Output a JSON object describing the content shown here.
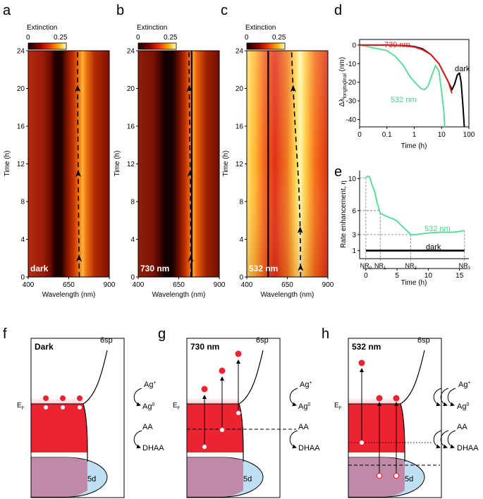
{
  "panel_labels": [
    "a",
    "b",
    "c",
    "d",
    "e",
    "f",
    "g",
    "h"
  ],
  "maps": [
    {
      "id": "a",
      "condition": "dark",
      "colorbar": {
        "title": "Extinction",
        "min_label": "0",
        "max_label": "0.25"
      },
      "x_label": "Wavelength (nm)",
      "y_label": "Time (h)",
      "x_ticks": [
        400,
        650,
        900
      ],
      "y_ticks": [
        0,
        4,
        8,
        12,
        16,
        20,
        24
      ],
      "x_range": [
        400,
        900
      ],
      "y_range": [
        0,
        24
      ],
      "dark_band_nm": 555,
      "peak_path": [
        [
          715,
          0
        ],
        [
          712,
          4
        ],
        [
          710,
          8
        ],
        [
          708,
          12
        ],
        [
          706,
          16
        ],
        [
          705,
          20
        ],
        [
          704,
          24
        ]
      ],
      "solid_line_nm": null,
      "arrow_times": [
        2,
        11,
        20
      ]
    },
    {
      "id": "b",
      "condition": "730 nm",
      "colorbar": {
        "title": "Extinction",
        "min_label": "0",
        "max_label": "0.25"
      },
      "x_label": "Wavelength (nm)",
      "y_label": "Time (h)",
      "x_ticks": [
        400,
        650,
        900
      ],
      "y_ticks": [
        0,
        4,
        8,
        12,
        16,
        20,
        24
      ],
      "x_range": [
        400,
        900
      ],
      "y_range": [
        0,
        24
      ],
      "dark_band_nm": 555,
      "peak_path": [
        [
          725,
          0
        ],
        [
          723,
          6
        ],
        [
          720,
          12
        ],
        [
          716,
          18
        ],
        [
          713,
          24
        ]
      ],
      "solid_line_nm": 730,
      "arrow_times": [
        2,
        11,
        20
      ]
    },
    {
      "id": "c",
      "condition": "532 nm",
      "colorbar": {
        "title": "Extinction",
        "min_label": "0",
        "max_label": "0.25"
      },
      "x_label": "Wavelength (nm)",
      "y_label": "Time (h)",
      "x_ticks": [
        400,
        650,
        900
      ],
      "y_ticks": [
        0,
        4,
        8,
        12,
        16,
        20,
        24
      ],
      "x_range": [
        400,
        900
      ],
      "y_range": [
        0,
        24
      ],
      "dark_band_nm": null,
      "peak_path": [
        [
          732,
          0
        ],
        [
          731,
          3
        ],
        [
          728,
          6
        ],
        [
          720,
          10
        ],
        [
          705,
          14
        ],
        [
          692,
          18
        ],
        [
          683,
          21
        ],
        [
          676,
          24
        ]
      ],
      "solid_line_nm": 532,
      "arrow_times": [
        1,
        5,
        20
      ]
    }
  ],
  "chart_data": [
    {
      "panel": "d",
      "type": "line",
      "x_scale": "symlog",
      "x_ticks": [
        "0",
        "0.1",
        "1",
        "10",
        "100"
      ],
      "y_ticks": [
        0,
        -10,
        -20,
        -30,
        -40
      ],
      "xlabel": "Time (h)",
      "ylabel": "Δλlongitudinal (nm)",
      "ylim": [
        -44,
        3
      ],
      "series": [
        {
          "name": "dark",
          "color": "#000000",
          "points": [
            [
              0,
              0
            ],
            [
              0.1,
              0
            ],
            [
              0.5,
              -0.3
            ],
            [
              1,
              -0.8
            ],
            [
              2,
              -2
            ],
            [
              4,
              -5
            ],
            [
              8,
              -10
            ],
            [
              12,
              -15
            ],
            [
              18,
              -20
            ],
            [
              24,
              -24
            ],
            [
              30,
              -21
            ],
            [
              38,
              -16
            ],
            [
              45,
              -15
            ],
            [
              52,
              -20
            ],
            [
              60,
              -32
            ],
            [
              68,
              -44
            ]
          ]
        },
        {
          "name": "730 nm",
          "color": "#dd1f1f",
          "points": [
            [
              0,
              0
            ],
            [
              0.1,
              0
            ],
            [
              0.5,
              -0.5
            ],
            [
              1,
              -1
            ],
            [
              2,
              -2.5
            ],
            [
              4,
              -5
            ],
            [
              8,
              -10
            ],
            [
              12,
              -15
            ],
            [
              18,
              -20
            ],
            [
              24,
              -26
            ]
          ]
        },
        {
          "name": "532 nm",
          "color": "#5fdc9c",
          "points": [
            [
              0,
              0
            ],
            [
              0.02,
              -0.5
            ],
            [
              0.05,
              -1.5
            ],
            [
              0.1,
              -3
            ],
            [
              0.2,
              -6
            ],
            [
              0.4,
              -11
            ],
            [
              0.7,
              -17
            ],
            [
              1.2,
              -21
            ],
            [
              1.8,
              -23.5
            ],
            [
              2.4,
              -24
            ],
            [
              3.2,
              -22
            ],
            [
              4.5,
              -16
            ],
            [
              6,
              -11
            ],
            [
              8,
              -14
            ],
            [
              10,
              -25
            ],
            [
              12,
              -35
            ],
            [
              13,
              -44
            ]
          ]
        }
      ]
    },
    {
      "panel": "e",
      "type": "line",
      "xlabel": "Time (h)",
      "ylabel": "Rate enhancement, η",
      "x_ticks": [
        0,
        5,
        10,
        15
      ],
      "y_ticks": [
        1,
        3,
        6,
        10
      ],
      "xlim": [
        -1,
        16.5
      ],
      "ylim": [
        0,
        11
      ],
      "markers": [
        {
          "label": "NR",
          "sub": "0",
          "x": 0
        },
        {
          "label": "NR",
          "sub": "1",
          "x": 2.3
        },
        {
          "label": "NR",
          "sub": "2",
          "x": 7.2
        },
        {
          "label": "NR",
          "sub": "3",
          "x": 15.8
        }
      ],
      "series": [
        {
          "name": "532 nm",
          "color": "#5fdc9c",
          "points": [
            [
              0,
              10.1
            ],
            [
              0.3,
              10.3
            ],
            [
              0.6,
              10.2
            ],
            [
              1.0,
              9.2
            ],
            [
              1.4,
              8.4
            ],
            [
              1.8,
              7
            ],
            [
              2.3,
              5.7
            ],
            [
              3.0,
              5.4
            ],
            [
              3.6,
              5.2
            ],
            [
              4.3,
              5.0
            ],
            [
              5.0,
              4.7
            ],
            [
              5.6,
              4.2
            ],
            [
              6.3,
              3.7
            ],
            [
              7.2,
              3.0
            ],
            [
              8.0,
              3.0
            ],
            [
              9.0,
              3.1
            ],
            [
              10.0,
              3.2
            ],
            [
              12.0,
              3.3
            ],
            [
              14.0,
              3.3
            ],
            [
              15.0,
              3.4
            ],
            [
              15.8,
              3.5
            ]
          ]
        },
        {
          "name": "dark",
          "color": "#000000",
          "points": [
            [
              0,
              1
            ],
            [
              15.8,
              1
            ]
          ]
        }
      ]
    }
  ],
  "schemes": [
    {
      "id": "f",
      "title": "Dark",
      "band_top": "6sp",
      "band_bottom": "5d",
      "fermi": "EF",
      "reactions": [
        "Ag+",
        "Ag0",
        "AA",
        "DHAA"
      ],
      "arrows": 1,
      "transitions": []
    },
    {
      "id": "g",
      "title": "730 nm",
      "band_top": "6sp",
      "band_bottom": "5d",
      "fermi": "EF",
      "reactions": [
        "Ag+",
        "Ag0",
        "AA",
        "DHAA"
      ],
      "arrows": 1,
      "transitions": [
        "lower",
        "mid",
        "upper"
      ]
    },
    {
      "id": "h",
      "title": "532 nm",
      "band_top": "6sp",
      "band_bottom": "5d",
      "fermi": "EF",
      "reactions": [
        "Ag+",
        "Ag0",
        "AA",
        "DHAA"
      ],
      "arrows": 3,
      "transitions": [
        "high",
        "d1",
        "d2"
      ]
    }
  ],
  "colors": {
    "accent_green": "#5fdc9c",
    "accent_red": "#dd1f1f",
    "metal_red": "#ec2330",
    "d_band_blue": "#bfdff2"
  }
}
